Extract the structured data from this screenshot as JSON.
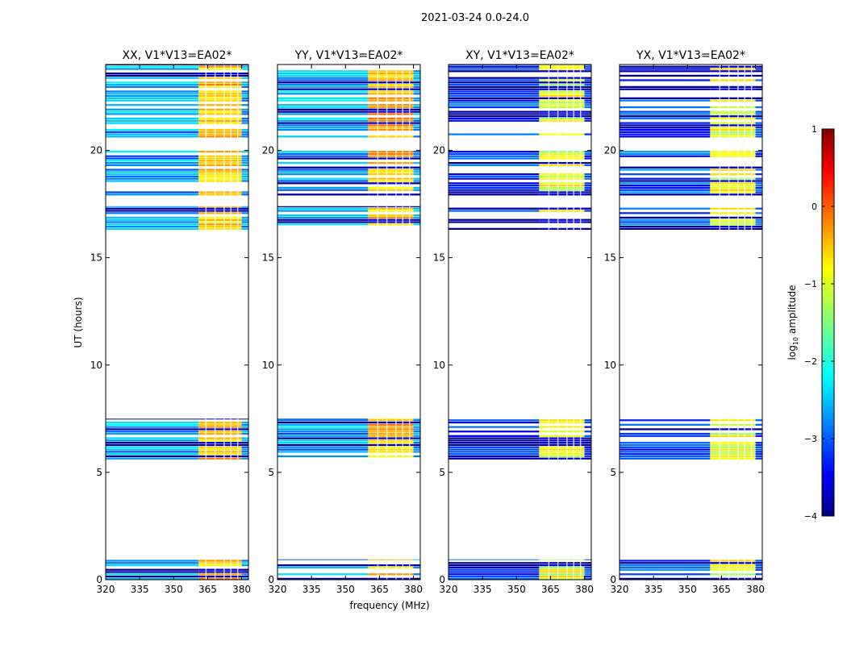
{
  "chart_data": {
    "type": "heatmap",
    "suptitle": "2021-03-24 0.0-24.0",
    "xlabel": "frequency (MHz)",
    "ylabel": "UT (hours)",
    "xlim": [
      320,
      383
    ],
    "ylim": [
      0,
      24
    ],
    "xticks": [
      320,
      335,
      350,
      365,
      380
    ],
    "yticks": [
      0,
      5,
      10,
      15,
      20
    ],
    "colorbar": {
      "label": "log10 amplitude",
      "label_main": "log",
      "label_sub": "10",
      "label_rest": " amplitude",
      "range": [
        -4,
        1
      ],
      "ticks": [
        1,
        0,
        -1,
        -2,
        -3,
        -4
      ],
      "colormap": "jet"
    },
    "data_time_blocks_hours": [
      [
        0.0,
        0.95
      ],
      [
        5.6,
        7.5
      ],
      [
        16.3,
        17.4
      ],
      [
        17.9,
        20.0
      ],
      [
        20.6,
        24.0
      ]
    ],
    "rfi_band_mhz": [
      362,
      380
    ],
    "panels": [
      {
        "title": "XX, V1*V13=EA02*",
        "pol": "XX",
        "base_log_amp": -2.6,
        "band_log_amp": -0.6,
        "band_start_mhz": 361
      },
      {
        "title": "YY, V1*V13=EA02*",
        "pol": "YY",
        "base_log_amp": -2.6,
        "band_log_amp": -0.5,
        "band_start_mhz": 360
      },
      {
        "title": "XY, V1*V13=EA02*",
        "pol": "XY",
        "base_log_amp": -3.1,
        "band_log_amp": -1.0,
        "band_start_mhz": 360
      },
      {
        "title": "YX, V1*V13=EA02*",
        "pol": "YX",
        "base_log_amp": -3.0,
        "band_log_amp": -1.0,
        "band_start_mhz": 360
      }
    ]
  }
}
